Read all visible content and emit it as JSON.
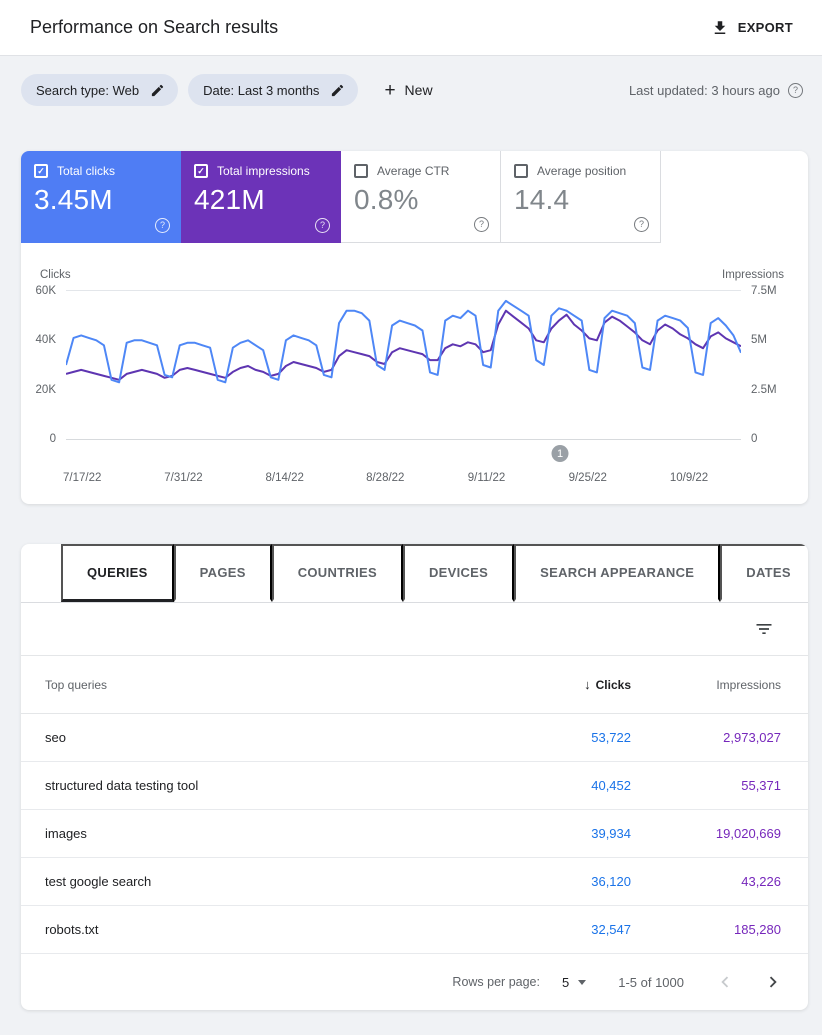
{
  "header": {
    "title": "Performance on Search results",
    "export_label": "EXPORT"
  },
  "filters": {
    "search_type_chip": "Search type: Web",
    "date_chip": "Date: Last 3 months",
    "new_label": "New",
    "last_updated": "Last updated: 3 hours ago"
  },
  "metrics": [
    {
      "label": "Total clicks",
      "value": "3.45M",
      "checked": true,
      "bg": "#4f7df4",
      "fg": "#ffffff"
    },
    {
      "label": "Total impressions",
      "value": "421M",
      "checked": true,
      "bg": "#6c33b8",
      "fg": "#ffffff"
    },
    {
      "label": "Average CTR",
      "value": "0.8%",
      "checked": false
    },
    {
      "label": "Average position",
      "value": "14.4",
      "checked": false
    }
  ],
  "chart_data": {
    "type": "line",
    "x_ticks": [
      "7/17/22",
      "7/31/22",
      "8/14/22",
      "8/28/22",
      "9/11/22",
      "9/25/22",
      "10/9/22"
    ],
    "left_axis": {
      "label": "Clicks",
      "ticks": [
        "60K",
        "40K",
        "20K",
        "0"
      ],
      "max": 60
    },
    "right_axis": {
      "label": "Impressions",
      "ticks": [
        "7.5M",
        "5M",
        "2.5M",
        "0"
      ],
      "max": 7.5
    },
    "annotation": {
      "label": "1",
      "x_frac": 0.732
    },
    "grid": "top-and-bottom-only",
    "legend_position": "none",
    "series": [
      {
        "name": "Impressions",
        "unit": "M",
        "color": "#5e35b1",
        "max": 7.5,
        "values": [
          3.3,
          3.4,
          3.5,
          3.4,
          3.3,
          3.2,
          3.1,
          3.0,
          3.3,
          3.4,
          3.5,
          3.4,
          3.3,
          3.1,
          3.2,
          3.5,
          3.6,
          3.5,
          3.4,
          3.3,
          3.2,
          3.1,
          3.4,
          3.6,
          3.7,
          3.5,
          3.4,
          3.2,
          3.3,
          3.7,
          3.9,
          3.8,
          3.7,
          3.6,
          3.4,
          3.5,
          4.2,
          4.5,
          4.4,
          4.3,
          4.2,
          3.9,
          3.8,
          4.4,
          4.6,
          4.5,
          4.4,
          4.3,
          4.0,
          4.0,
          4.6,
          4.8,
          4.7,
          4.9,
          4.8,
          4.4,
          4.5,
          5.8,
          6.5,
          6.2,
          5.9,
          5.6,
          5.0,
          4.9,
          5.6,
          6.0,
          6.3,
          5.8,
          5.5,
          5.1,
          5.0,
          5.9,
          6.2,
          6.0,
          5.7,
          5.4,
          5.0,
          4.8,
          5.5,
          5.8,
          5.6,
          5.3,
          5.1,
          4.8,
          4.6,
          5.2,
          5.4,
          5.1,
          4.9,
          4.7
        ]
      },
      {
        "name": "Clicks",
        "unit": "K",
        "color": "#4e87f6",
        "max": 60,
        "values": [
          30,
          41,
          42,
          41,
          40,
          38,
          24,
          23,
          39,
          40,
          40,
          39,
          38,
          26,
          25,
          38,
          39,
          39,
          38,
          37,
          24,
          23,
          37,
          39,
          40,
          38,
          36,
          25,
          24,
          40,
          42,
          41,
          40,
          38,
          26,
          25,
          47,
          52,
          52,
          51,
          48,
          30,
          28,
          46,
          48,
          47,
          46,
          44,
          27,
          26,
          48,
          50,
          49,
          52,
          50,
          30,
          29,
          52,
          56,
          54,
          52,
          50,
          32,
          30,
          50,
          53,
          52,
          50,
          48,
          28,
          27,
          49,
          52,
          51,
          50,
          47,
          29,
          28,
          48,
          50,
          49,
          48,
          45,
          27,
          26,
          47,
          49,
          46,
          42,
          35
        ]
      }
    ]
  },
  "tabs": [
    {
      "label": "QUERIES",
      "active": true
    },
    {
      "label": "PAGES",
      "active": false
    },
    {
      "label": "COUNTRIES",
      "active": false
    },
    {
      "label": "DEVICES",
      "active": false
    },
    {
      "label": "SEARCH APPEARANCE",
      "active": false
    },
    {
      "label": "DATES",
      "active": false
    }
  ],
  "table": {
    "columns": {
      "query": "Top queries",
      "clicks": "Clicks",
      "impressions": "Impressions"
    },
    "sort": {
      "column": "Clicks",
      "direction": "desc"
    },
    "rows": [
      {
        "query": "seo",
        "clicks": "53,722",
        "impressions": "2,973,027"
      },
      {
        "query": "structured data testing tool",
        "clicks": "40,452",
        "impressions": "55,371"
      },
      {
        "query": "images",
        "clicks": "39,934",
        "impressions": "19,020,669"
      },
      {
        "query": "test google search",
        "clicks": "36,120",
        "impressions": "43,226"
      },
      {
        "query": "robots.txt",
        "clicks": "32,547",
        "impressions": "185,280"
      }
    ]
  },
  "pagination": {
    "rows_per_page_label": "Rows per page:",
    "rows_per_page_value": "5",
    "range": "1-5 of 1000"
  },
  "icons": {
    "help": "?",
    "plus": "+",
    "sort_desc": "↓",
    "check": "✓"
  },
  "colors": {
    "tile_blue": "#4f7df4",
    "tile_purple": "#6c33b8",
    "line_blue": "#4e87f6",
    "line_purple": "#5e35b1",
    "clicks_text": "#1a73e8",
    "impressions_text": "#7627bb"
  }
}
